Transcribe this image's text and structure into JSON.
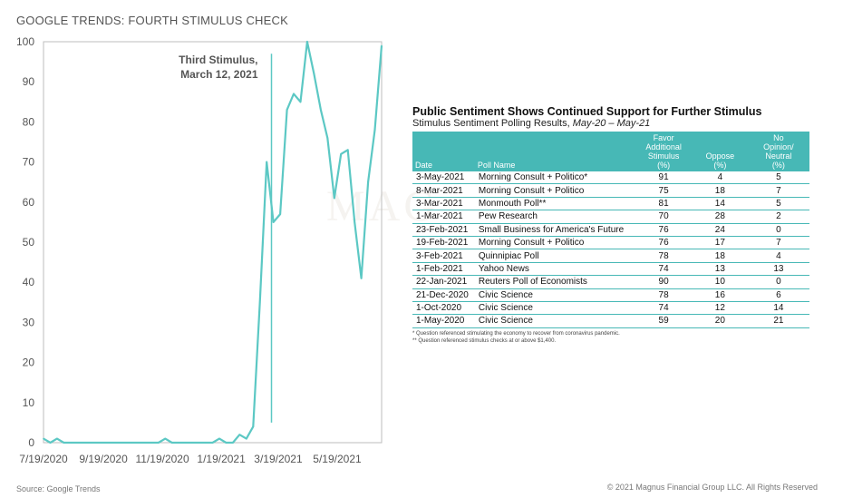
{
  "title": "GOOGLE TRENDS: FOURTH STIMULUS CHECK",
  "watermark": "MAG",
  "footer": {
    "source": "Source: Google Trends",
    "copyright": "© 2021 Magnus Financial Group LLC. All Rights Reserved"
  },
  "chart_data": {
    "type": "line",
    "title": "GOOGLE TRENDS: FOURTH STIMULUS CHECK",
    "ylim": [
      0,
      100
    ],
    "yticks": [
      0,
      10,
      20,
      30,
      40,
      50,
      60,
      70,
      80,
      90,
      100
    ],
    "xticks": [
      "7/19/2020",
      "9/19/2020",
      "11/19/2020",
      "1/19/2021",
      "3/19/2021",
      "5/19/2021"
    ],
    "x_range": [
      "2020-07-19",
      "2021-07-04"
    ],
    "grid": false,
    "series": [
      {
        "color": "#5cc8c4",
        "x": [
          "2020-07-19",
          "2020-07-26",
          "2020-08-02",
          "2020-08-09",
          "2020-08-16",
          "2020-08-23",
          "2020-08-30",
          "2020-09-06",
          "2020-09-13",
          "2020-09-20",
          "2020-09-27",
          "2020-10-04",
          "2020-10-11",
          "2020-10-18",
          "2020-10-25",
          "2020-11-01",
          "2020-11-08",
          "2020-11-15",
          "2020-11-22",
          "2020-11-29",
          "2020-12-06",
          "2020-12-13",
          "2020-12-20",
          "2020-12-27",
          "2021-01-03",
          "2021-01-10",
          "2021-01-17",
          "2021-01-24",
          "2021-01-31",
          "2021-02-07",
          "2021-02-14",
          "2021-02-21",
          "2021-02-28",
          "2021-03-07",
          "2021-03-14",
          "2021-03-21",
          "2021-03-28",
          "2021-04-04",
          "2021-04-11",
          "2021-04-18",
          "2021-04-25",
          "2021-05-02",
          "2021-05-09",
          "2021-05-16",
          "2021-05-23",
          "2021-05-30",
          "2021-06-06",
          "2021-06-13",
          "2021-06-20",
          "2021-06-27",
          "2021-07-04"
        ],
        "values": [
          1,
          0,
          1,
          0,
          0,
          0,
          0,
          0,
          0,
          0,
          0,
          0,
          0,
          0,
          0,
          0,
          0,
          0,
          1,
          0,
          0,
          0,
          0,
          0,
          0,
          0,
          1,
          0,
          0,
          2,
          1,
          4,
          35,
          70,
          55,
          57,
          83,
          87,
          85,
          100,
          92,
          83,
          76,
          61,
          72,
          73,
          55,
          41,
          65,
          78,
          99
        ]
      }
    ],
    "annotations": [
      {
        "text_line1": "Third Stimulus,",
        "text_line2": "March 12, 2021",
        "x": "2021-03-12"
      }
    ]
  },
  "poll_table": {
    "title": "Public Sentiment Shows Continued Support for Further Stimulus",
    "subtitle_prefix": "Stimulus Sentiment Polling Results, ",
    "subtitle_range": "May-20 – May-21",
    "headers": {
      "date": "Date",
      "poll": "Poll Name",
      "favor": [
        "Favor",
        "Additional",
        "Stimulus",
        "(%)"
      ],
      "oppose": [
        "Oppose",
        "(%)"
      ],
      "neutral": [
        "No",
        "Opinion/",
        "Neutral",
        "(%)"
      ]
    },
    "rows": [
      {
        "date": "3-May-2021",
        "poll": "Morning Consult + Politico*",
        "favor": "91",
        "oppose": "4",
        "neutral": "5"
      },
      {
        "date": "8-Mar-2021",
        "poll": "Morning Consult + Politico",
        "favor": "75",
        "oppose": "18",
        "neutral": "7"
      },
      {
        "date": "3-Mar-2021",
        "poll": "Monmouth Poll**",
        "favor": "81",
        "oppose": "14",
        "neutral": "5"
      },
      {
        "date": "1-Mar-2021",
        "poll": "Pew Research",
        "favor": "70",
        "oppose": "28",
        "neutral": "2"
      },
      {
        "date": "23-Feb-2021",
        "poll": "Small Business for America's Future",
        "favor": "76",
        "oppose": "24",
        "neutral": "0"
      },
      {
        "date": "19-Feb-2021",
        "poll": "Morning Consult + Politico",
        "favor": "76",
        "oppose": "17",
        "neutral": "7"
      },
      {
        "date": "3-Feb-2021",
        "poll": "Quinnipiac Poll",
        "favor": "78",
        "oppose": "18",
        "neutral": "4"
      },
      {
        "date": "1-Feb-2021",
        "poll": "Yahoo News",
        "favor": "74",
        "oppose": "13",
        "neutral": "13"
      },
      {
        "date": "22-Jan-2021",
        "poll": "Reuters Poll of Economists",
        "favor": "90",
        "oppose": "10",
        "neutral": "0"
      },
      {
        "date": "21-Dec-2020",
        "poll": "Civic Science",
        "favor": "78",
        "oppose": "16",
        "neutral": "6"
      },
      {
        "date": "1-Oct-2020",
        "poll": "Civic Science",
        "favor": "74",
        "oppose": "12",
        "neutral": "14"
      },
      {
        "date": "1-May-2020",
        "poll": "Civic Science",
        "favor": "59",
        "oppose": "20",
        "neutral": "21"
      }
    ],
    "notes": [
      "* Question referenced stimulating the economy to recover from coronavirus pandemic.",
      "** Question referenced stimulus checks at or above $1,400."
    ]
  }
}
